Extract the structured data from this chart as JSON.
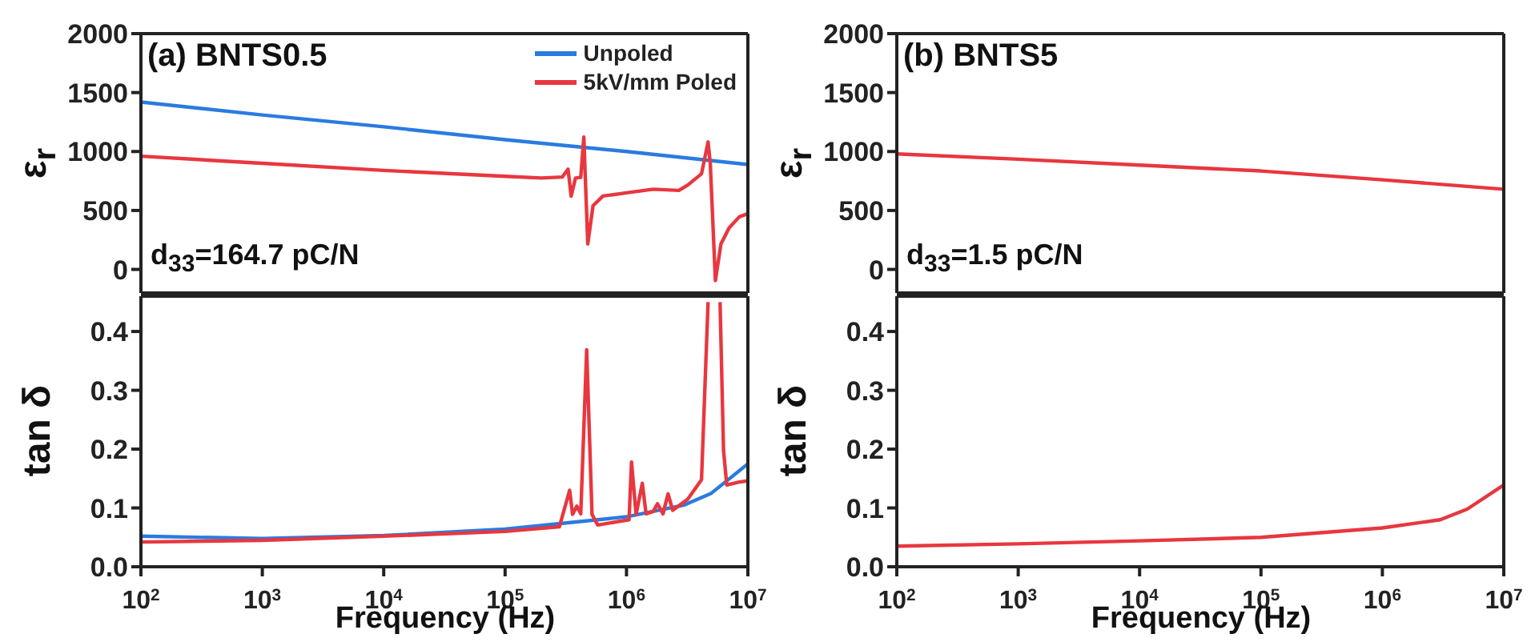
{
  "chart_data": [
    {
      "type": "line",
      "ylabel": "ε$_{r}$",
      "annotations": [
        "(a) BNTS0.5",
        "d$_{33}$=164.7 pC/N"
      ],
      "log": "x",
      "xlim": [
        100,
        10000000
      ],
      "xticks": [
        {
          "value": 100,
          "label": null
        },
        {
          "value": 1000,
          "label": null
        },
        {
          "value": 10000,
          "label": null
        },
        {
          "value": 100000,
          "label": null
        },
        {
          "value": 1000000,
          "label": null
        },
        {
          "value": 10000000,
          "label": null
        }
      ],
      "ylim": [
        -200,
        2000
      ],
      "yticks": [
        0,
        500,
        1000,
        1500,
        2000
      ],
      "tick_labels": "y",
      "legend": "top right",
      "series": [
        {
          "name": "Unpoled",
          "color": "#2a7be0",
          "x": [
            100,
            1000,
            10000,
            100000,
            1000000,
            10000000
          ],
          "values": [
            1420,
            1310,
            1210,
            1100,
            1000,
            890
          ]
        },
        {
          "name": "5kV/mm Poled",
          "color": "#e8373f",
          "x": [
            100,
            1000,
            10000,
            100000,
            200000,
            296000,
            330000,
            350000,
            380000,
            420000,
            445000,
            480000,
            530000,
            640000,
            1000000,
            1660000,
            2700000,
            3200000,
            4150000,
            4700000,
            4900000,
            5400000,
            6000000,
            7000000,
            8500000,
            10000000
          ],
          "values": [
            960,
            900,
            840,
            790,
            775,
            784,
            851,
            622,
            775,
            780,
            1122,
            216,
            540,
            622,
            650,
            680,
            670,
            716,
            811,
            1081,
            901,
            -95,
            216,
            351,
            446,
            473
          ]
        }
      ]
    },
    {
      "type": "line",
      "ylabel": "ε$_{r}$",
      "annotations": [
        "(b) BNTS5",
        "d$_{33}$=1.5 pC/N"
      ],
      "log": "x",
      "xlim": [
        100,
        10000000
      ],
      "xticks": [
        {
          "value": 100,
          "label": null
        },
        {
          "value": 1000,
          "label": null
        },
        {
          "value": 10000,
          "label": null
        },
        {
          "value": 100000,
          "label": null
        },
        {
          "value": 1000000,
          "label": null
        },
        {
          "value": 10000000,
          "label": null
        }
      ],
      "ylim": [
        -200,
        2000
      ],
      "yticks": [
        0,
        500,
        1000,
        1500,
        2000
      ],
      "tick_labels": "y",
      "series": [
        {
          "color": "#e8373f",
          "x": [
            100,
            1000,
            10000,
            100000,
            1000000,
            10000000
          ],
          "values": [
            980,
            935,
            885,
            835,
            760,
            680
          ]
        }
      ]
    },
    {
      "type": "line",
      "ylabel": "tan δ",
      "xlabel": "Frequency (Hz)",
      "log": "x",
      "xlim": [
        100,
        10000000
      ],
      "xticks": [
        {
          "value": 100,
          "label": "10$^{2}$"
        },
        {
          "value": 1000,
          "label": "10$^{3}$"
        },
        {
          "value": 10000,
          "label": "10$^{4}$"
        },
        {
          "value": 100000,
          "label": "10$^{5}$"
        },
        {
          "value": 1000000,
          "label": "10$^{6}$"
        },
        {
          "value": 10000000,
          "label": "10$^{7}$"
        }
      ],
      "ylim": [
        0,
        0.46
      ],
      "yticks": [
        {
          "value": 0,
          "label": "0.0"
        },
        0.1,
        0.2,
        0.3,
        0.4
      ],
      "series": [
        {
          "color": "#2a7be0",
          "x": [
            100,
            1000,
            10000,
            100000,
            1000000,
            3000000,
            5000000,
            10000000
          ],
          "values": [
            0.052,
            0.048,
            0.053,
            0.064,
            0.085,
            0.105,
            0.125,
            0.175
          ]
        },
        {
          "color": "#e8373f",
          "x": [
            100,
            1000,
            10000,
            100000,
            280000,
            340000,
            360000,
            390000,
            420000,
            470000,
            520000,
            580000,
            1050000,
            1100000,
            1200000,
            1350000,
            1450000,
            1660000,
            1800000,
            2000000,
            2200000,
            2400000,
            3200000,
            4150000,
            4700000,
            5300000,
            5900000,
            6300000,
            6700000,
            8500000,
            10000000
          ],
          "values": [
            0.042,
            0.045,
            0.052,
            0.06,
            0.068,
            0.13,
            0.089,
            0.103,
            0.09,
            0.369,
            0.089,
            0.071,
            0.08,
            0.178,
            0.089,
            0.142,
            0.09,
            0.094,
            0.107,
            0.09,
            0.124,
            0.096,
            0.115,
            0.148,
            0.45,
            null,
            0.45,
            0.198,
            0.139,
            0.144,
            0.146
          ]
        }
      ]
    },
    {
      "type": "line",
      "ylabel": "tan δ",
      "xlabel": "Frequency (Hz)",
      "log": "x",
      "xlim": [
        100,
        10000000
      ],
      "xticks": [
        {
          "value": 100,
          "label": "10$^{2}$"
        },
        {
          "value": 1000,
          "label": "10$^{3}$"
        },
        {
          "value": 10000,
          "label": "10$^{4}$"
        },
        {
          "value": 100000,
          "label": "10$^{5}$"
        },
        {
          "value": 1000000,
          "label": "10$^{6}$"
        },
        {
          "value": 10000000,
          "label": "10$^{7}$"
        }
      ],
      "ylim": [
        0,
        0.46
      ],
      "yticks": [
        {
          "value": 0,
          "label": "0.0"
        },
        0.1,
        0.2,
        0.3,
        0.4
      ],
      "series": [
        {
          "color": "#e8373f",
          "x": [
            100,
            1000,
            10000,
            100000,
            1000000,
            3000000,
            5000000,
            10000000
          ],
          "values": [
            0.035,
            0.039,
            0.044,
            0.05,
            0.066,
            0.08,
            0.098,
            0.139
          ]
        }
      ]
    }
  ]
}
